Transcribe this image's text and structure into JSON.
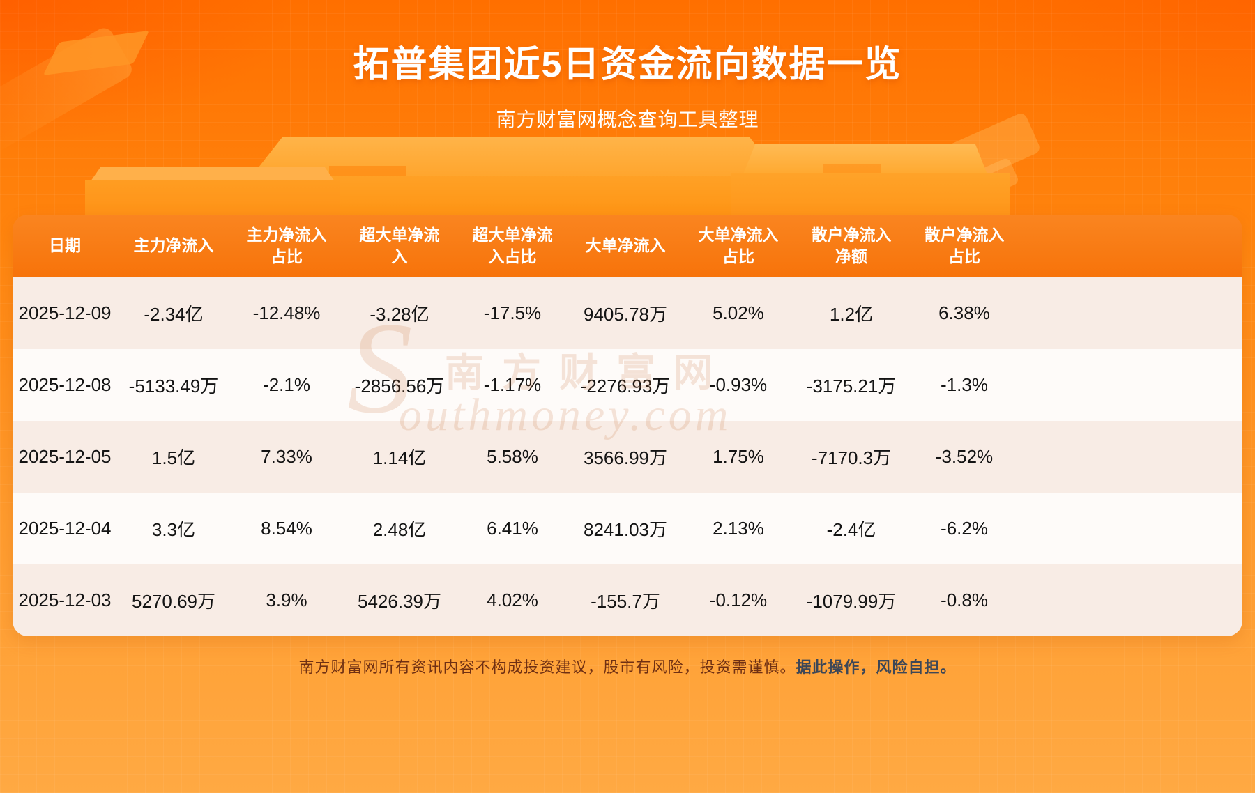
{
  "page": {
    "title": "拓普集团近5日资金流向数据一览",
    "subtitle": "南方财富网概念查询工具整理",
    "watermark_initial": "S",
    "watermark_cn": "南方财富网",
    "watermark_en": "outhmoney.com",
    "footer_main": "南方财富网所有资讯内容不构成投资建议，股市有风险，投资需谨慎。",
    "footer_emphasis": "据此操作，风险自担。"
  },
  "colors": {
    "accent_orange": "#ff7a00",
    "header_bg": "#f7730a",
    "row_alt_bg": "#f8ece5",
    "row_bg": "#fefbf9",
    "title_color": "#ffffff",
    "footer_color": "#703013"
  },
  "chart_data": {
    "type": "table",
    "title": "拓普集团近5日资金流向数据一览",
    "columns": [
      "日期",
      "主力净流入",
      "主力净流入占比",
      "超大单净流入",
      "超大单净流入占比",
      "大单净流入",
      "大单净流入占比",
      "散户净流入净额",
      "散户净流入占比"
    ],
    "rows": [
      [
        "2025-12-09",
        "-2.34亿",
        "-12.48%",
        "-3.28亿",
        "-17.5%",
        "9405.78万",
        "5.02%",
        "1.2亿",
        "6.38%"
      ],
      [
        "2025-12-08",
        "-5133.49万",
        "-2.1%",
        "-2856.56万",
        "-1.17%",
        "-2276.93万",
        "-0.93%",
        "-3175.21万",
        "-1.3%"
      ],
      [
        "2025-12-05",
        "1.5亿",
        "7.33%",
        "1.14亿",
        "5.58%",
        "3566.99万",
        "1.75%",
        "-7170.3万",
        "-3.52%"
      ],
      [
        "2025-12-04",
        "3.3亿",
        "8.54%",
        "2.48亿",
        "6.41%",
        "8241.03万",
        "2.13%",
        "-2.4亿",
        "-6.2%"
      ],
      [
        "2025-12-03",
        "5270.69万",
        "3.9%",
        "5426.39万",
        "4.02%",
        "-155.7万",
        "-0.12%",
        "-1079.99万",
        "-0.8%"
      ]
    ]
  }
}
